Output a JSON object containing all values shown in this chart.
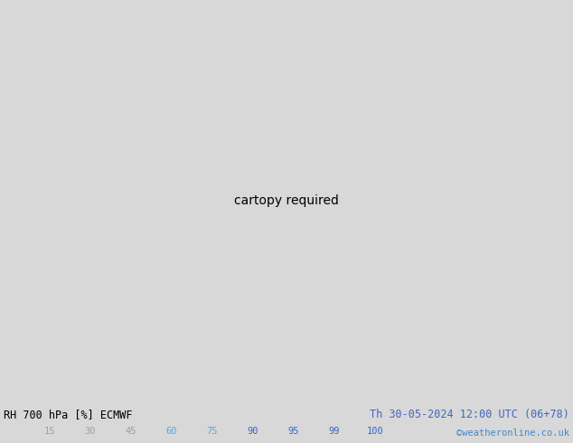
{
  "title_left": "RH 700 hPa [%] ECMWF",
  "title_right": "Th 30-05-2024 12:00 UTC (06+78)",
  "credit": "©weatheronline.co.uk",
  "colorbar_values": [
    15,
    30,
    45,
    60,
    75,
    90,
    95,
    99,
    100
  ],
  "bottom_bg": "#d8d8d8",
  "fig_bg": "#d8d8d8",
  "map_bg": "#b8cfe0",
  "rh_levels": [
    15,
    30,
    45,
    60,
    75,
    90,
    95,
    99,
    100
  ],
  "rh_colors": [
    "#c8c8c8",
    "#b8b8b8",
    "#a8a8c0",
    "#98b8d0",
    "#d0eea0",
    "#98dc98",
    "#60c060",
    "#30a030",
    "#008000"
  ],
  "contour_color": "#888888",
  "border_color": "#20a020",
  "label_color": "#202020",
  "title_left_color": "#000000",
  "title_right_color": "#4466bb",
  "credit_color": "#4488cc",
  "cb_label_colors": [
    "#a0a0a0",
    "#a0a0a0",
    "#a0a0a0",
    "#55aadd",
    "#55aadd",
    "#3366cc",
    "#3366cc",
    "#3366cc",
    "#3366cc"
  ],
  "map_extent": [
    24,
    100,
    5,
    55
  ]
}
